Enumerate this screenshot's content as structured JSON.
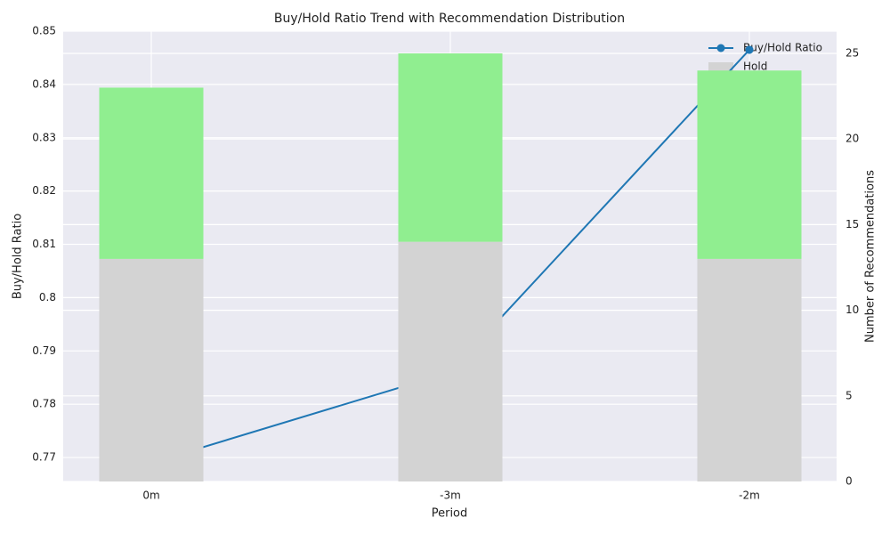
{
  "chart_data": {
    "type": "combo",
    "title": "Buy/Hold Ratio Trend with Recommendation Distribution",
    "x_label": "Period",
    "y_label": "Buy/Hold Ratio",
    "y2_label": "Number of Recommendations",
    "categories": [
      "0m",
      "-3m",
      "-2m"
    ],
    "series": [
      {
        "name": "Buy/Hold Ratio",
        "type": "line",
        "color": "#1f77b4",
        "values": [
          0.769,
          0.786,
          0.8465
        ]
      },
      {
        "name": "Hold",
        "type": "bar",
        "axis": "y2",
        "color": "#d3d3d3",
        "values": [
          13,
          14,
          13
        ]
      },
      {
        "type": "bar",
        "axis": "y2",
        "color": "#90ee90",
        "values": [
          10,
          11,
          11
        ]
      }
    ],
    "ylim": [
      0.7655,
      0.85
    ],
    "yticks": [
      0.77,
      0.78,
      0.79,
      0.8,
      0.81,
      0.82,
      0.83,
      0.84,
      0.85
    ],
    "y2lim": [
      0,
      26.3
    ],
    "y2ticks": [
      0,
      5,
      10,
      15,
      20,
      25
    ],
    "y_color": "#1f77b4",
    "grid": true,
    "legend": "upper-right"
  }
}
